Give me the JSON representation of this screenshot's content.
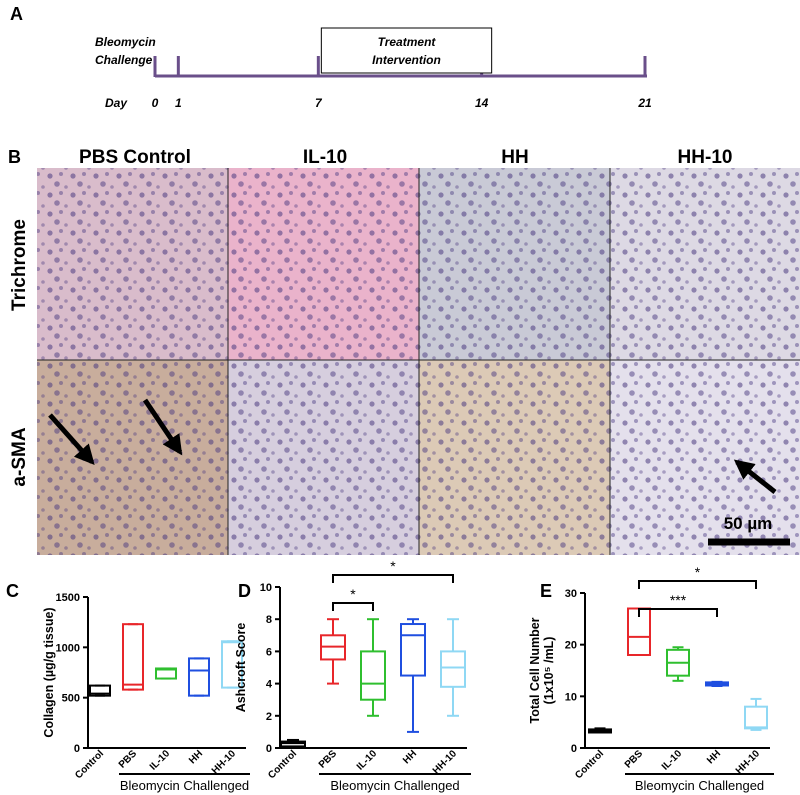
{
  "panel_a": {
    "label": "A",
    "challenge": [
      "Bleomycin",
      "Challenge"
    ],
    "treatment": [
      "Treatment",
      "Intervention"
    ],
    "day_label": "Day",
    "days": [
      0,
      1,
      7,
      14,
      21
    ]
  },
  "panel_b": {
    "label": "B",
    "columns": [
      "PBS Control",
      "IL-10",
      "HH",
      "HH-10"
    ],
    "rows": [
      "Trichrome",
      "a-SMA"
    ],
    "scale_bar": "50 µm"
  },
  "chart_data": [
    {
      "type": "box",
      "panel": "C",
      "ylabel": [
        "Collagen (µg/g tissue)"
      ],
      "group_label": "Bleomycin Challenged",
      "categories": [
        "Control",
        "PBS",
        "IL-10",
        "HH",
        "HH-10"
      ],
      "colors": [
        "#000000",
        "#e8262a",
        "#2fbf2f",
        "#1f4fe0",
        "#8fd8f4"
      ],
      "boxes": [
        {
          "min": 520,
          "q1": 520,
          "median": 540,
          "q3": 620,
          "max": 620
        },
        {
          "min": 580,
          "q1": 580,
          "median": 630,
          "q3": 1230,
          "max": 1230
        },
        {
          "min": 690,
          "q1": 690,
          "median": 780,
          "q3": 790,
          "max": 790
        },
        {
          "min": 520,
          "q1": 520,
          "median": 770,
          "q3": 890,
          "max": 890
        },
        {
          "min": 600,
          "q1": 600,
          "median": 1050,
          "q3": 1060,
          "max": 1060
        }
      ],
      "ylim": [
        0,
        1500
      ],
      "yticks": [
        0,
        500,
        1000,
        1500
      ],
      "significance": []
    },
    {
      "type": "box",
      "panel": "D",
      "ylabel": [
        "Ashcroft Score"
      ],
      "group_label": "Bleomycin Challenged",
      "categories": [
        "Control",
        "PBS",
        "IL-10",
        "HH",
        "HH-10"
      ],
      "colors": [
        "#000000",
        "#e8262a",
        "#2fbf2f",
        "#1f4fe0",
        "#8fd8f4"
      ],
      "boxes": [
        {
          "min": 0,
          "q1": 0.1,
          "median": 0.3,
          "q3": 0.4,
          "max": 0.5
        },
        {
          "min": 4,
          "q1": 5.5,
          "median": 6.3,
          "q3": 7,
          "max": 8
        },
        {
          "min": 2,
          "q1": 3,
          "median": 4,
          "q3": 6,
          "max": 8
        },
        {
          "min": 1,
          "q1": 4.5,
          "median": 7,
          "q3": 7.7,
          "max": 8
        },
        {
          "min": 2,
          "q1": 3.8,
          "median": 5,
          "q3": 6,
          "max": 8
        }
      ],
      "ylim": [
        0,
        10
      ],
      "yticks": [
        0,
        2,
        4,
        6,
        8,
        10
      ],
      "significance": [
        {
          "from": 1,
          "to": 2,
          "label": "*"
        },
        {
          "from": 1,
          "to": 4,
          "label": "*"
        }
      ]
    },
    {
      "type": "box",
      "panel": "E",
      "ylabel": [
        "Total Cell Number",
        "(1x10⁵ /mL)"
      ],
      "group_label": "Bleomycin Challenged",
      "categories": [
        "Control",
        "PBS",
        "IL-10",
        "HH",
        "HH-10"
      ],
      "colors": [
        "#000000",
        "#e8262a",
        "#2fbf2f",
        "#1f4fe0",
        "#8fd8f4"
      ],
      "boxes": [
        {
          "min": 3,
          "q1": 3,
          "median": 3.3,
          "q3": 3.6,
          "max": 3.8
        },
        {
          "min": 18,
          "q1": 18,
          "median": 21.5,
          "q3": 27,
          "max": 27
        },
        {
          "min": 13,
          "q1": 14,
          "median": 16.5,
          "q3": 19,
          "max": 19.5
        },
        {
          "min": 12,
          "q1": 12.1,
          "median": 12.4,
          "q3": 12.7,
          "max": 12.8
        },
        {
          "min": 3.5,
          "q1": 3.8,
          "median": 4,
          "q3": 8,
          "max": 9.5
        }
      ],
      "ylim": [
        0,
        30
      ],
      "yticks": [
        0,
        10,
        20,
        30
      ],
      "significance": [
        {
          "from": 1,
          "to": 3,
          "label": "***"
        },
        {
          "from": 1,
          "to": 4,
          "label": "*"
        }
      ]
    }
  ]
}
